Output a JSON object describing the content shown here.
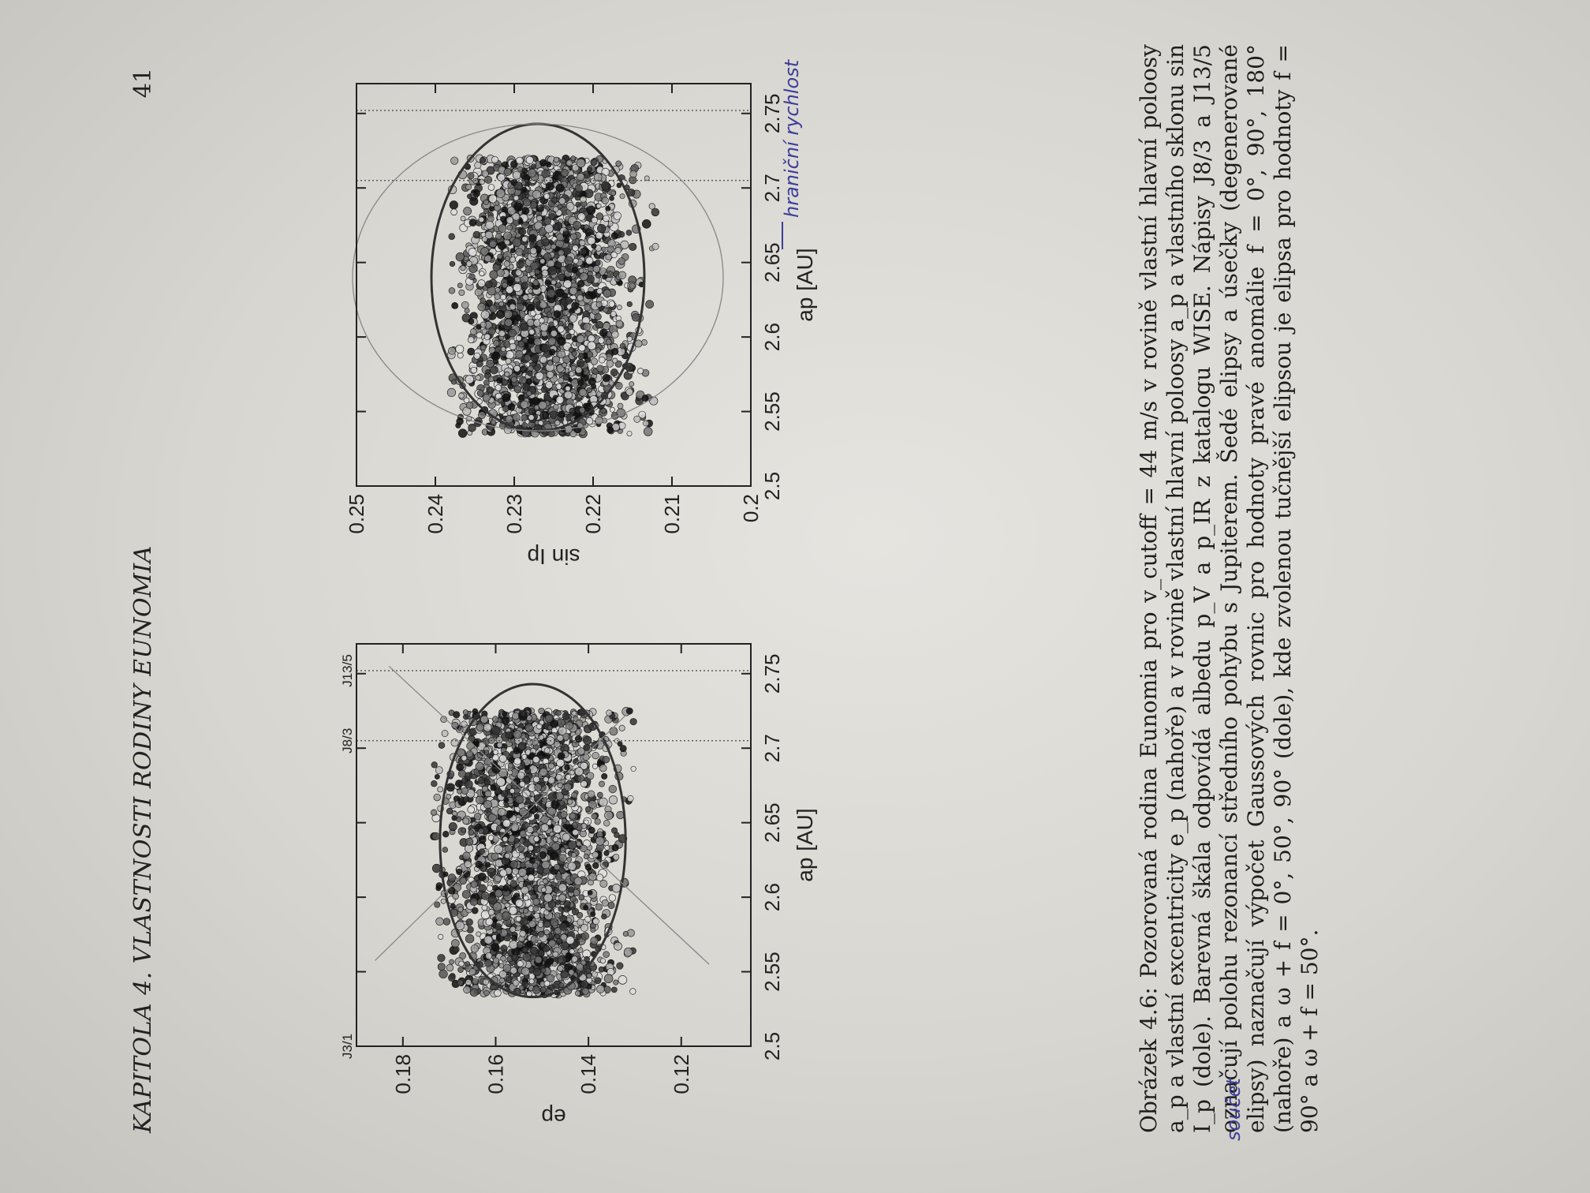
{
  "page": {
    "running_head": "KAPITOLA 4.  VLASTNOSTI RODINY EUNOMIA",
    "page_number": "41"
  },
  "chart_data": [
    {
      "type": "scatter",
      "title": "",
      "xlabel": "a_p [AU]",
      "ylabel": "e_p",
      "xlim": [
        2.5,
        2.77
      ],
      "ylim": [
        0.105,
        0.19
      ],
      "x_ticks": [
        "2.5",
        "2.55",
        "2.6",
        "2.65",
        "2.7",
        "2.75"
      ],
      "y_ticks": [
        "0.12",
        "0.14",
        "0.16",
        "0.18"
      ],
      "resonances": [
        {
          "name": "J3/1",
          "a": 2.5
        },
        {
          "name": "J8/3",
          "a": 2.705
        },
        {
          "name": "J13/5",
          "a": 2.752
        }
      ],
      "cluster": {
        "a_range": [
          2.535,
          2.725
        ],
        "e_range": [
          0.133,
          0.17
        ],
        "center": [
          2.626,
          0.152
        ]
      },
      "ellipse": {
        "center": [
          2.638,
          0.152
        ],
        "a_half": 0.105,
        "e_half": 0.02
      },
      "grey_lines": [
        {
          "from": [
            2.5575,
            0.186
          ],
          "to": [
            2.722,
            0.132
          ]
        },
        {
          "from": [
            2.555,
            0.114
          ],
          "to": [
            2.755,
            0.183
          ]
        }
      ],
      "grid": false,
      "legend": null
    },
    {
      "type": "scatter",
      "title": "",
      "xlabel": "a_p [AU]",
      "ylabel": "sin I_p",
      "xlim": [
        2.5,
        2.77
      ],
      "ylim": [
        0.2,
        0.25
      ],
      "x_ticks": [
        "2.5",
        "2.55",
        "2.6",
        "2.65",
        "2.7",
        "2.75"
      ],
      "y_ticks": [
        "0.2",
        "0.21",
        "0.22",
        "0.23",
        "0.24",
        "0.25"
      ],
      "cluster": {
        "a_range": [
          2.535,
          2.72
        ],
        "sinI_range": [
          0.214,
          0.236
        ],
        "center": [
          2.626,
          0.226
        ]
      },
      "ellipses": [
        {
          "center": [
            2.64,
            0.227
          ],
          "a_half": 0.103,
          "s_half": 0.0135,
          "style": "bold"
        },
        {
          "center": [
            2.64,
            0.227
          ],
          "a_half": 0.103,
          "s_half": 0.0235,
          "style": "grey"
        }
      ],
      "grid": false,
      "legend": null
    }
  ],
  "caption": {
    "text": "Obrázek 4.6: Pozorovaná rodina Eunomia pro v_cutoff = 44 m/s v rovině vlastní hlavní poloosy a_p a vlastní excentricity e_p (nahoře) a v rovině vlastní hlavní poloosy a_p a vlastního sklonu sin I_p (dole). Barevná škála odpovídá albedu p_V a p_IR z katalogu WISE. Nápisy J8/3 a J13/5 označují polohu rezonancí středního pohybu s Jupiterem. Šedé elipsy a úsečky (degenerované elipsy) naznačují výpočet Gaussových rovnic pro hodnoty pravé anomálie f = 0°, 90°, 180° (nahoře) a ω + f = 0°, 50°, 90° (dole), kde zvolenou tučnější elipsou je elipsa pro hodnoty f = 90° a ω + f = 50°."
  },
  "handwritten": {
    "note_top": "hraniční rychlost",
    "note_bottom": "součet"
  }
}
